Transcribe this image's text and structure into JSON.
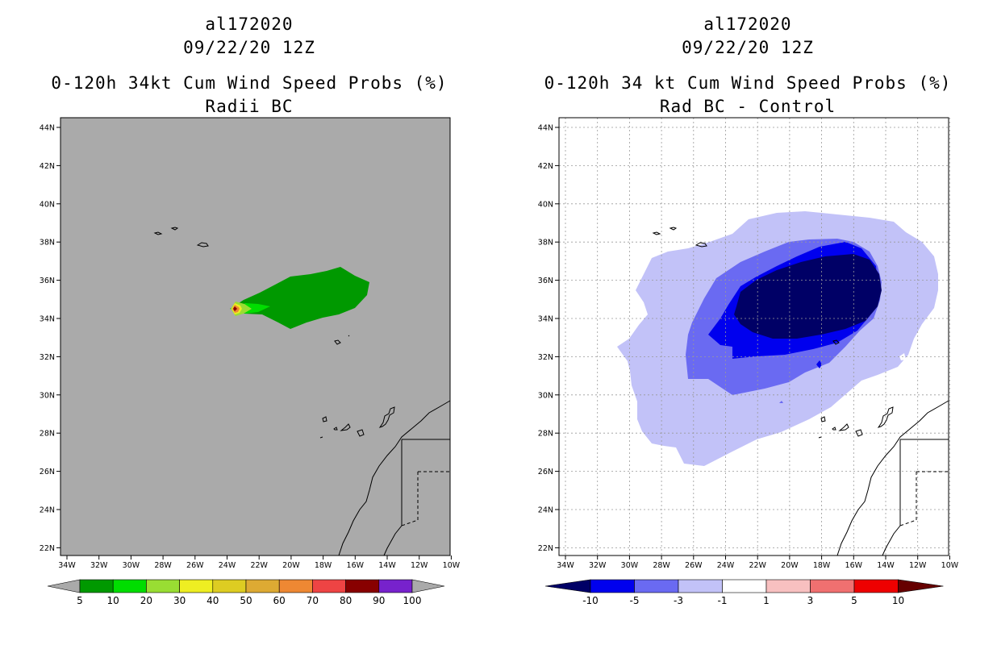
{
  "panels": {
    "left": {
      "storm_id": "al172020",
      "datetime": "09/22/20 12Z",
      "title": "0-120h 34kt Cum Wind Speed Probs (%)",
      "subtitle": "Radii BC",
      "colorbar_labels": [
        "5",
        "10",
        "20",
        "30",
        "40",
        "50",
        "60",
        "70",
        "80",
        "90",
        "100"
      ],
      "colorbar_colors": [
        "#009900",
        "#00dd00",
        "#99dd33",
        "#eeee22",
        "#ddcc22",
        "#ddaa33",
        "#ee8833",
        "#ee4444",
        "#880000",
        "#7722cc"
      ],
      "background_color": "#aaaaaa"
    },
    "right": {
      "storm_id": "al172020",
      "datetime": "09/22/20 12Z",
      "title": "0-120h 34 kt Cum Wind Speed Probs (%)",
      "subtitle": "Rad BC - Control",
      "colorbar_labels": [
        "-10",
        "-5",
        "-3",
        "-1",
        "1",
        "3",
        "5",
        "10"
      ],
      "colorbar_colors": [
        "#0000ee",
        "#6a6af2",
        "#c2c2f8",
        "#ffffff",
        "#f8c0c0",
        "#f07070",
        "#ee0000"
      ],
      "arrow_colors": {
        "low": "#000066",
        "high": "#660000"
      }
    }
  },
  "axes": {
    "lat_labels": [
      "44N",
      "42N",
      "40N",
      "38N",
      "36N",
      "34N",
      "32N",
      "30N",
      "28N",
      "26N",
      "24N",
      "22N"
    ],
    "lon_labels": [
      "34W",
      "32W",
      "30W",
      "28W",
      "26W",
      "24W",
      "22W",
      "20W",
      "18W",
      "16W",
      "14W",
      "12W",
      "10W"
    ]
  }
}
